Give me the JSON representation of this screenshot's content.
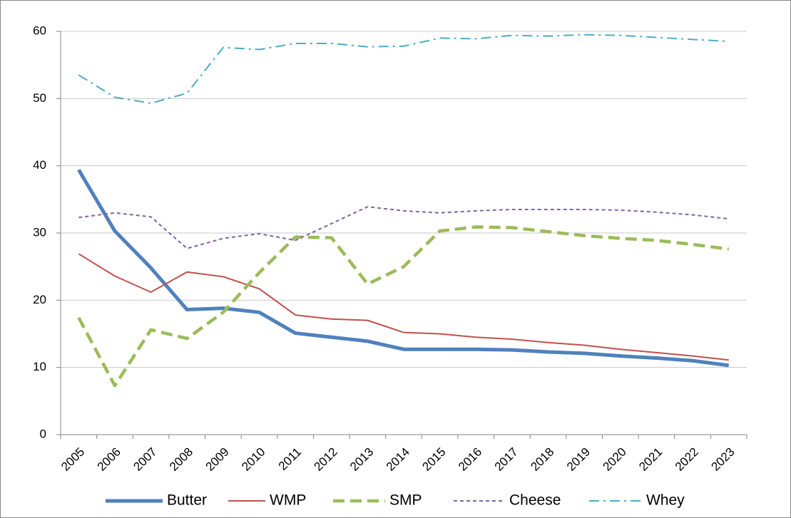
{
  "chart_data": {
    "type": "line",
    "categories": [
      "2005",
      "2006",
      "2007",
      "2008",
      "2009",
      "2010",
      "2011",
      "2012",
      "2013",
      "2014",
      "2015",
      "2016",
      "2017",
      "2018",
      "2019",
      "2020",
      "2021",
      "2022",
      "2023"
    ],
    "ylim": [
      0,
      60
    ],
    "yticks": [
      0,
      10,
      20,
      30,
      40,
      50,
      60
    ],
    "grid": true,
    "legend": "bottom",
    "series": [
      {
        "name": "Butter",
        "color": "#4f81bd",
        "width": 5,
        "dash": "none",
        "values": [
          39.4,
          30.3,
          24.8,
          18.6,
          18.8,
          18.2,
          15.1,
          14.5,
          13.9,
          12.7,
          12.7,
          12.7,
          12.6,
          12.3,
          12.1,
          11.7,
          11.4,
          11.0,
          10.3
        ]
      },
      {
        "name": "WMP",
        "color": "#c0504d",
        "width": 2,
        "dash": "none",
        "values": [
          26.9,
          23.6,
          21.2,
          24.2,
          23.5,
          21.7,
          17.8,
          17.2,
          17.0,
          15.2,
          15.0,
          14.5,
          14.2,
          13.7,
          13.3,
          12.7,
          12.2,
          11.7,
          11.1
        ]
      },
      {
        "name": "SMP",
        "color": "#9bbb59",
        "width": 4.5,
        "dash": "16 8",
        "values": [
          17.4,
          7.3,
          15.6,
          14.3,
          18.2,
          24.1,
          29.4,
          29.3,
          22.4,
          25.0,
          30.3,
          30.9,
          30.8,
          30.2,
          29.6,
          29.2,
          28.9,
          28.3,
          27.6
        ]
      },
      {
        "name": "Cheese",
        "color": "#8064a2",
        "width": 2,
        "dash": "5 4",
        "values": [
          32.3,
          33.0,
          32.4,
          27.7,
          29.2,
          29.9,
          28.9,
          31.4,
          33.9,
          33.3,
          33.0,
          33.3,
          33.5,
          33.5,
          33.5,
          33.4,
          33.1,
          32.7,
          32.1
        ]
      },
      {
        "name": "Whey",
        "color": "#4bacc6",
        "width": 2,
        "dash": "14 6 3 6",
        "values": [
          53.5,
          50.2,
          49.3,
          50.8,
          57.6,
          57.3,
          58.2,
          58.2,
          57.7,
          57.8,
          59.0,
          58.9,
          59.4,
          59.3,
          59.5,
          59.4,
          59.1,
          58.8,
          58.5
        ]
      }
    ]
  }
}
